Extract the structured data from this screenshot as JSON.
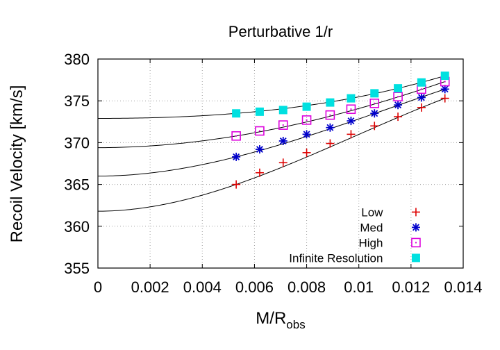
{
  "chart_data": {
    "type": "scatter",
    "title": "Perturbative 1/r",
    "xlabel": "M/R",
    "xlabel_sub": "obs",
    "ylabel": "Recoil Velocity [km/s]",
    "xlim": [
      0,
      0.014
    ],
    "ylim": [
      355,
      380
    ],
    "xticks": [
      0,
      0.002,
      0.004,
      0.006,
      0.008,
      0.01,
      0.012,
      0.014
    ],
    "xtick_labels": [
      "0",
      "0.002",
      "0.004",
      "0.006",
      "0.008",
      "0.01",
      "0.012",
      "0.014"
    ],
    "yticks": [
      355,
      360,
      365,
      370,
      375,
      380
    ],
    "ytick_labels": [
      "355",
      "360",
      "365",
      "370",
      "375",
      "380"
    ],
    "grid": true,
    "legend_position": "bottom-right",
    "x": [
      0.0053,
      0.0062,
      0.0071,
      0.008,
      0.0089,
      0.0097,
      0.0106,
      0.0115,
      0.0124,
      0.0133
    ],
    "series": [
      {
        "name": "Low",
        "marker": "plus",
        "color": "#dd0000",
        "values": [
          365.0,
          366.4,
          367.6,
          368.8,
          369.9,
          371.0,
          372.0,
          373.1,
          374.2,
          375.3
        ]
      },
      {
        "name": "Med",
        "marker": "asterisk",
        "color": "#0000cc",
        "values": [
          368.3,
          369.2,
          370.2,
          371.0,
          371.8,
          372.6,
          373.5,
          374.5,
          375.4,
          376.4
        ]
      },
      {
        "name": "High",
        "marker": "open-square",
        "color": "#dd00dd",
        "values": [
          370.8,
          371.4,
          372.1,
          372.7,
          373.3,
          374.0,
          374.7,
          375.5,
          376.4,
          377.3
        ]
      },
      {
        "name": "Infinite Resolution",
        "marker": "filled-square",
        "color": "#00e0e0",
        "values": [
          373.5,
          373.7,
          373.9,
          374.3,
          374.8,
          375.3,
          375.9,
          376.5,
          377.2,
          378.0
        ]
      }
    ],
    "fits": [
      {
        "for": "Low",
        "intercept": 361.8,
        "points": [
          [
            0.0053,
            365.0
          ],
          [
            0.0133,
            375.3
          ]
        ]
      },
      {
        "for": "Med",
        "intercept": 366.0,
        "points": [
          [
            0.0053,
            368.3
          ],
          [
            0.0133,
            376.4
          ]
        ]
      },
      {
        "for": "High",
        "intercept": 369.4,
        "points": [
          [
            0.0053,
            370.8
          ],
          [
            0.0133,
            377.3
          ]
        ]
      },
      {
        "for": "Infinite Resolution",
        "intercept": 372.9,
        "points": [
          [
            0.0053,
            373.5
          ],
          [
            0.0133,
            378.0
          ]
        ]
      }
    ]
  }
}
